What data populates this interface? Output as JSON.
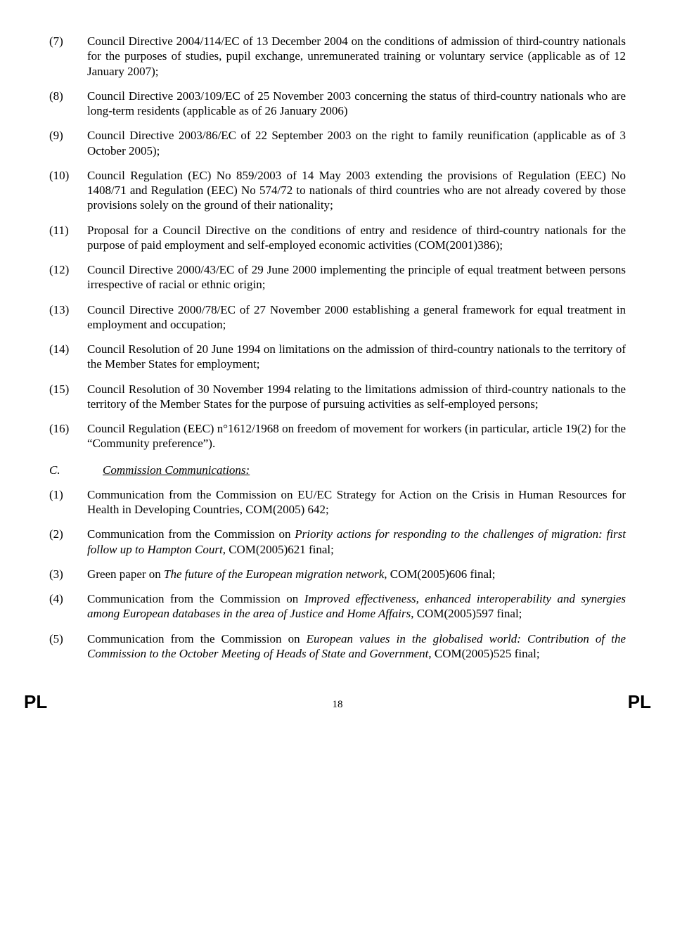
{
  "items": [
    {
      "num": "(7)",
      "html": "Council Directive 2004/114/EC of 13 December 2004 on the conditions of admission of third-country nationals for the purposes of studies, pupil exchange, unremunerated training or voluntary service (applicable as of 12 January 2007);"
    },
    {
      "num": "(8)",
      "html": "Council Directive 2003/109/EC of 25 November 2003 concerning the status of third-country nationals who are long-term residents (applicable as of 26 January 2006)"
    },
    {
      "num": "(9)",
      "html": "Council Directive 2003/86/EC of 22 September 2003 on the right to family reunification (applicable as of 3 October 2005);"
    },
    {
      "num": "(10)",
      "html": "Council Regulation (EC) No 859/2003 of 14 May 2003 extending the provisions of Regulation (EEC) No 1408/71 and Regulation (EEC) No 574/72 to nationals of third countries who are not already covered by those provisions solely on the ground of their nationality;"
    },
    {
      "num": "(11)",
      "html": "Proposal for a Council Directive on the conditions of entry and residence of third-country nationals for the purpose of paid employment and self-employed economic activities (COM(2001)386);"
    },
    {
      "num": "(12)",
      "html": "Council Directive 2000/43/EC of 29 June 2000 implementing the principle of equal treatment between persons irrespective of racial or ethnic origin;"
    },
    {
      "num": "(13)",
      "html": "Council Directive 2000/78/EC of 27 November 2000 establishing a general framework for equal treatment in employment and occupation;"
    },
    {
      "num": "(14)",
      "html": "Council Resolution of 20 June 1994 on limitations on the admission of third-country nationals to the territory of the Member States for employment;"
    },
    {
      "num": "(15)",
      "html": "Council Resolution of 30 November 1994 relating to the limitations admission of third-country nationals to the territory of the Member States for the purpose of pursuing activities as self-employed persons;"
    },
    {
      "num": "(16)",
      "html": "Council Regulation (EEC) n°1612/1968 on freedom of movement for workers (in particular, article 19(2) for the “Community preference”)."
    }
  ],
  "section": {
    "letter": "C.",
    "title": "Commission Communications:"
  },
  "comms": [
    {
      "num": "(1)",
      "html": "Communication from the Commission on EU/EC Strategy for Action on the Crisis in Human Resources for Health in Developing Countries, COM(2005) 642;"
    },
    {
      "num": "(2)",
      "html": "Communication from the Commission on <span class=\"ital\">Priority actions for responding to the challenges of migration: first follow up to Hampton Court</span>, COM(2005)621 final;"
    },
    {
      "num": "(3)",
      "html": "Green paper on <span class=\"ital\">The future of the European migration network</span>, COM(2005)606 final;"
    },
    {
      "num": "(4)",
      "html": "Communication from the Commission on <span class=\"ital\">Improved effectiveness, enhanced interoperability and synergies among European databases in the area of Justice and Home Affairs</span>, COM(2005)597 final;"
    },
    {
      "num": "(5)",
      "html": "Communication from the Commission on <span class=\"ital\">European values in the globalised world: Contribution of the Commission to the October Meeting of Heads of State and Government</span>, COM(2005)525 final;"
    }
  ],
  "footer": {
    "left": "PL",
    "right": "PL",
    "page": "18"
  }
}
